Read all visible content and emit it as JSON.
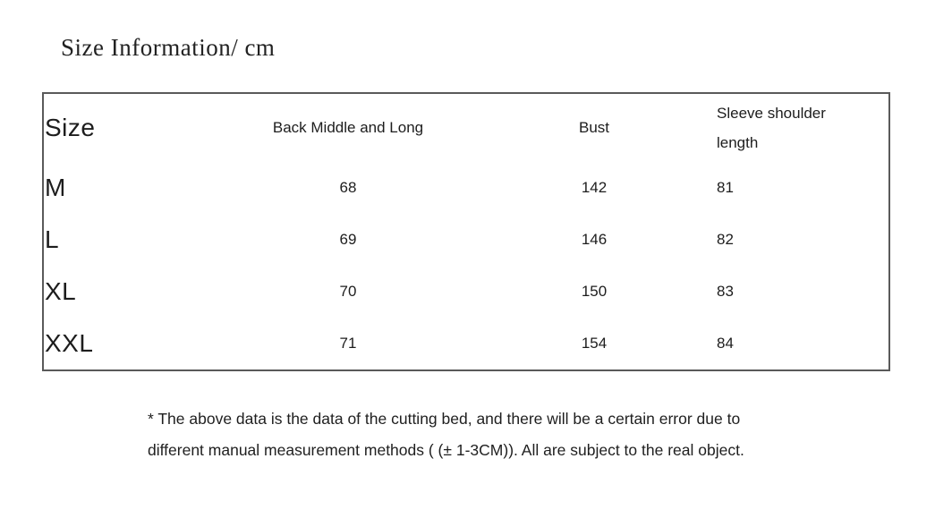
{
  "title": "Size Information/ cm",
  "table": {
    "columns": [
      "Size",
      "Back Middle and Long",
      "Bust",
      "Sleeve shoulder length"
    ],
    "rows": [
      {
        "size": "M",
        "back_middle_long": "68",
        "bust": "142",
        "sleeve_shoulder": "81"
      },
      {
        "size": "L",
        "back_middle_long": "69",
        "bust": "146",
        "sleeve_shoulder": "82"
      },
      {
        "size": "XL",
        "back_middle_long": "70",
        "bust": "150",
        "sleeve_shoulder": "83"
      },
      {
        "size": "XXL",
        "back_middle_long": "71",
        "bust": "154",
        "sleeve_shoulder": "84"
      }
    ]
  },
  "footnote": {
    "line1": "* The above data is the data of the cutting bed, and there will be a certain error due to",
    "line2": "different manual measurement methods ( (± 1-3CM)). All are subject to the real object."
  },
  "colors": {
    "background": "#ffffff",
    "text": "#1d1d1d",
    "border": "#5a5a5a"
  }
}
